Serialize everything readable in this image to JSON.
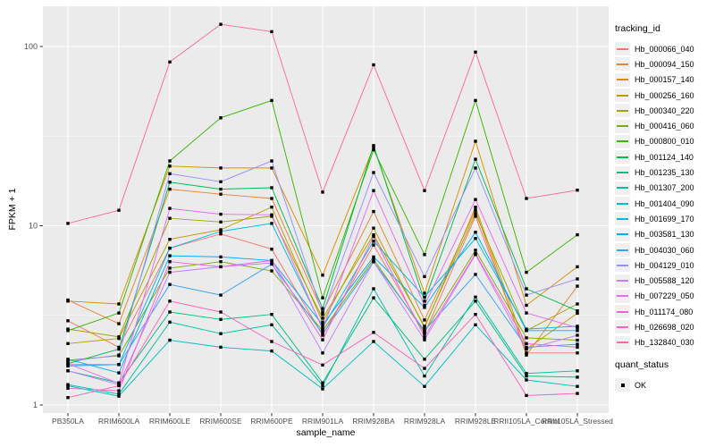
{
  "figure": {
    "y_axis_title": "FPKM + 1",
    "x_axis_title": "sample_name",
    "y_ticks": [
      "1",
      "10",
      "100"
    ],
    "legend": {
      "tracking_title": "tracking_id",
      "quant_title": "quant_status",
      "quant_ok_label": "OK"
    }
  },
  "chart_data": {
    "type": "line",
    "title": "",
    "xlabel": "sample_name",
    "ylabel": "FPKM + 1",
    "yscale": "log10",
    "ylim": [
      0.9,
      170
    ],
    "y_major_breaks": [
      1,
      10,
      100
    ],
    "y_minor_breaks": [
      3.1623,
      31.623
    ],
    "grid": "on",
    "legend_position": "right",
    "panel_bg": "#EBEBEB",
    "grid_color": "#FFFFFF",
    "point_shape": "filled-square",
    "point_color": "#000000",
    "quant_status_values": [
      "OK"
    ],
    "categories": [
      "PB350LA",
      "RRIM600LA",
      "RRIM600LE",
      "RRIM600SE",
      "RRIM600PE",
      "RRIM901LA",
      "RRIM928BA",
      "RRIM928LA",
      "RRIM928LE",
      "RRII105LA_Control",
      "RRII105LA_Stressed"
    ],
    "series": [
      {
        "name": "Hb_000066_040",
        "color": "#F8766D",
        "values": [
          2.95,
          2.1,
          7.5,
          9.0,
          7.4,
          2.45,
          7.8,
          2.5,
          11.3,
          1.95,
          1.95
        ]
      },
      {
        "name": "Hb_000094_150",
        "color": "#EA8331",
        "values": [
          3.85,
          2.84,
          16.0,
          15.0,
          14.2,
          3.3,
          12.0,
          2.98,
          12.2,
          1.9,
          4.6
        ]
      },
      {
        "name": "Hb_000157_140",
        "color": "#D89000",
        "values": [
          3.8,
          3.66,
          21.5,
          21.0,
          21.0,
          5.3,
          27.5,
          4.2,
          29.6,
          3.6,
          5.9
        ]
      },
      {
        "name": "Hb_000256_160",
        "color": "#C09B00",
        "values": [
          2.2,
          2.35,
          8.4,
          9.5,
          12.7,
          2.9,
          9.7,
          2.7,
          12.7,
          2.05,
          3.25
        ]
      },
      {
        "name": "Hb_000340_220",
        "color": "#A3A500",
        "values": [
          2.65,
          2.4,
          11.0,
          10.5,
          11.3,
          3.05,
          8.9,
          2.75,
          11.7,
          2.6,
          3.66
        ]
      },
      {
        "name": "Hb_000416_060",
        "color": "#7CAE00",
        "values": [
          1.78,
          1.88,
          5.8,
          6.3,
          5.6,
          2.6,
          6.5,
          2.55,
          7.3,
          2.37,
          2.3
        ]
      },
      {
        "name": "Hb_000800_010",
        "color": "#39B600",
        "values": [
          2.6,
          3.26,
          23.0,
          40.0,
          50.0,
          3.96,
          26.5,
          6.9,
          50.0,
          5.5,
          8.9
        ]
      },
      {
        "name": "Hb_001124_140",
        "color": "#00BB4E",
        "values": [
          1.7,
          2.05,
          17.5,
          16.0,
          16.3,
          3.45,
          28.0,
          3.8,
          23.5,
          4.45,
          3.35
        ]
      },
      {
        "name": "Hb_001235_130",
        "color": "#00BF7D",
        "values": [
          1.55,
          1.33,
          3.3,
          3.0,
          3.2,
          1.33,
          3.96,
          1.8,
          3.8,
          1.45,
          1.43
        ]
      },
      {
        "name": "Hb_001307_200",
        "color": "#00C1A3",
        "values": [
          1.3,
          1.15,
          2.9,
          2.5,
          2.8,
          1.28,
          4.45,
          1.45,
          4.0,
          1.5,
          1.55
        ]
      },
      {
        "name": "Hb_001404_090",
        "color": "#00BFC4",
        "values": [
          1.28,
          1.12,
          2.3,
          2.1,
          2.0,
          1.23,
          2.26,
          1.27,
          2.8,
          1.38,
          1.27
        ]
      },
      {
        "name": "Hb_001699_170",
        "color": "#00BAE0",
        "values": [
          1.68,
          1.68,
          7.5,
          9.3,
          10.3,
          2.7,
          8.2,
          4.0,
          8.5,
          2.65,
          2.75
        ]
      },
      {
        "name": "Hb_003581_130",
        "color": "#00B0F6",
        "values": [
          1.8,
          1.51,
          6.8,
          6.7,
          6.4,
          2.8,
          6.7,
          3.5,
          9.2,
          2.6,
          2.6
        ]
      },
      {
        "name": "Hb_004030_060",
        "color": "#35A2FF",
        "values": [
          1.65,
          1.68,
          4.7,
          4.1,
          6.1,
          2.5,
          6.3,
          2.6,
          5.35,
          2.1,
          2.18
        ]
      },
      {
        "name": "Hb_004129_010",
        "color": "#9590FF",
        "values": [
          1.75,
          1.9,
          19.5,
          17.6,
          23.0,
          3.2,
          19.8,
          5.2,
          21.0,
          4.1,
          5.05
        ]
      },
      {
        "name": "Hb_005588_120",
        "color": "#C77CFF",
        "values": [
          1.55,
          1.3,
          5.5,
          5.9,
          6.2,
          1.95,
          6.3,
          2.31,
          6.9,
          2.05,
          2.45
        ]
      },
      {
        "name": "Hb_007229_050",
        "color": "#E76BF3",
        "values": [
          1.7,
          1.32,
          12.5,
          11.6,
          11.5,
          2.65,
          15.7,
          3.6,
          14.0,
          3.26,
          2.7
        ]
      },
      {
        "name": "Hb_011174_080",
        "color": "#FA62DB",
        "values": [
          1.24,
          1.2,
          6.3,
          5.9,
          6.4,
          2.31,
          8.7,
          2.4,
          7.0,
          2.2,
          2.1
        ]
      },
      {
        "name": "Hb_026698_020",
        "color": "#FF62BC",
        "values": [
          1.1,
          1.28,
          3.8,
          3.3,
          2.26,
          1.67,
          2.54,
          1.6,
          3.2,
          1.13,
          1.16
        ]
      },
      {
        "name": "Hb_132840_030",
        "color": "#FF6A98",
        "values": [
          10.3,
          12.2,
          82,
          133,
          121,
          15.4,
          79,
          15.7,
          93,
          14.2,
          15.8
        ]
      }
    ]
  }
}
